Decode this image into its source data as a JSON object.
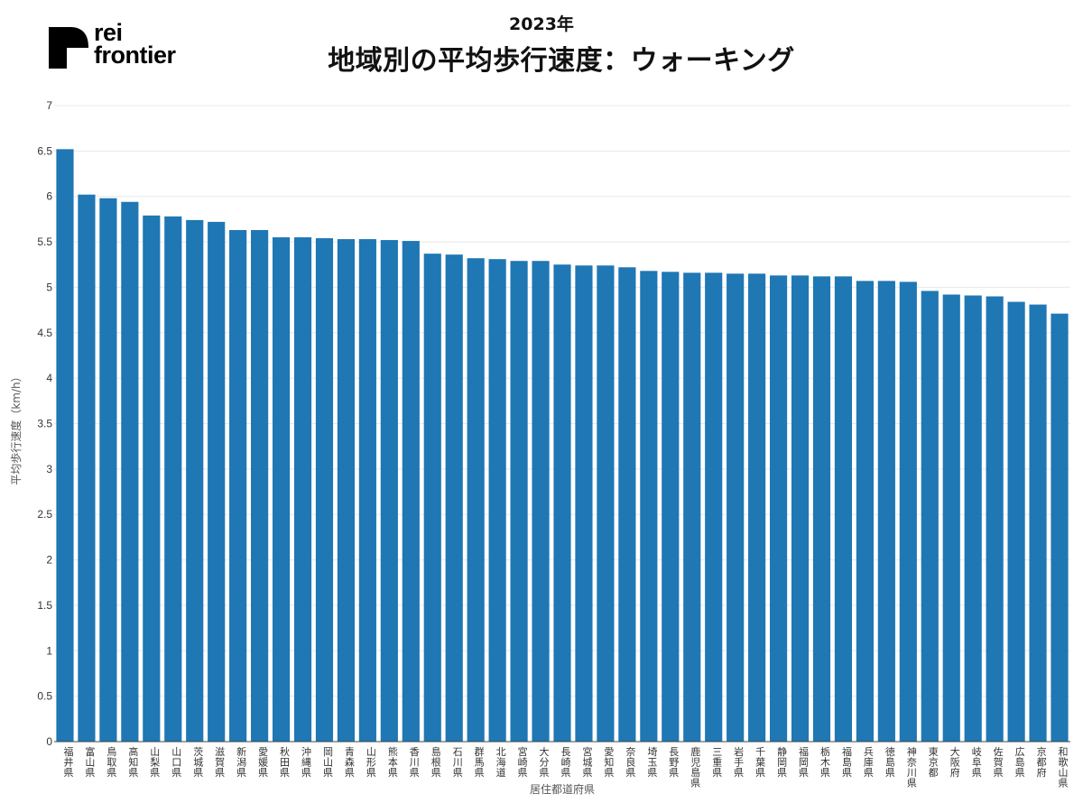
{
  "brand": {
    "logo_line1": "rei",
    "logo_line2": "frontier"
  },
  "header": {
    "subtitle": "2023年",
    "title": "地域別の平均歩行速度：ウォーキング"
  },
  "colors": {
    "bar": "#1f77b4",
    "grid": "#e8e8e8",
    "axis": "#444444"
  },
  "chart_data": {
    "type": "bar",
    "title": "地域別の平均歩行速度：ウォーキング",
    "subtitle": "2023年",
    "xlabel": "居住都道府県",
    "ylabel": "平均歩行速度（km/h）",
    "ylim": [
      0,
      7
    ],
    "yticks": [
      0,
      0.5,
      1,
      1.5,
      2,
      2.5,
      3,
      3.5,
      4,
      4.5,
      5,
      5.5,
      6,
      6.5,
      7
    ],
    "grid": true,
    "categories": [
      "福井県",
      "富山県",
      "鳥取県",
      "高知県",
      "山梨県",
      "山口県",
      "茨城県",
      "滋賀県",
      "新潟県",
      "愛媛県",
      "秋田県",
      "沖縄県",
      "岡山県",
      "青森県",
      "山形県",
      "熊本県",
      "香川県",
      "島根県",
      "石川県",
      "群馬県",
      "北海道",
      "宮崎県",
      "大分県",
      "長崎県",
      "宮城県",
      "愛知県",
      "奈良県",
      "埼玉県",
      "長野県",
      "鹿児島県",
      "三重県",
      "岩手県",
      "千葉県",
      "静岡県",
      "福岡県",
      "栃木県",
      "福島県",
      "兵庫県",
      "徳島県",
      "神奈川県",
      "東京都",
      "大阪府",
      "岐阜県",
      "佐賀県",
      "広島県",
      "京都府",
      "和歌山県"
    ],
    "values": [
      6.52,
      6.02,
      5.98,
      5.94,
      5.79,
      5.78,
      5.74,
      5.72,
      5.63,
      5.63,
      5.55,
      5.55,
      5.54,
      5.53,
      5.53,
      5.52,
      5.51,
      5.37,
      5.36,
      5.32,
      5.31,
      5.29,
      5.29,
      5.25,
      5.24,
      5.24,
      5.22,
      5.18,
      5.17,
      5.16,
      5.16,
      5.15,
      5.15,
      5.13,
      5.13,
      5.12,
      5.12,
      5.07,
      5.07,
      5.06,
      4.96,
      4.92,
      4.91,
      4.9,
      4.84,
      4.81,
      4.71
    ]
  }
}
